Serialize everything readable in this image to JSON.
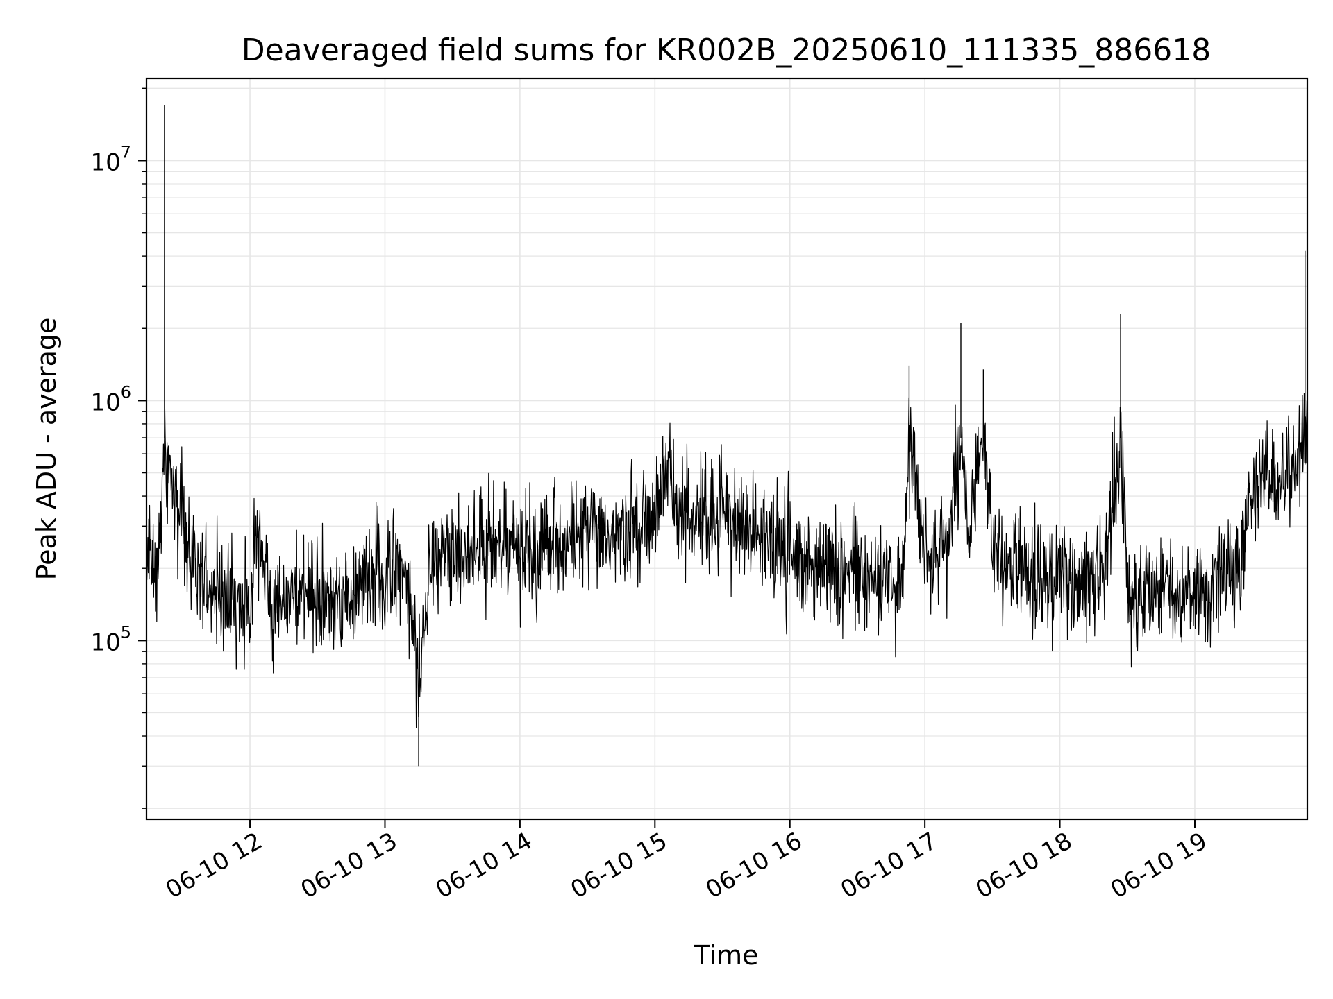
{
  "chart_data": {
    "type": "line",
    "title": "Deaveraged field sums for KR002B_20250610_111335_886618",
    "xlabel": "Time",
    "ylabel": "Peak ADU - average",
    "x_range": [
      "2025-06-10T11:14:00",
      "2025-06-10T19:50:00"
    ],
    "y_scale": "log",
    "ylim": [
      18000,
      22000000
    ],
    "grid": true,
    "line_color": "#000000",
    "grid_color": "#e6e6e6",
    "x_ticks": [
      {
        "value": "2025-06-10T12:00:00",
        "label": "06-10 12"
      },
      {
        "value": "2025-06-10T13:00:00",
        "label": "06-10 13"
      },
      {
        "value": "2025-06-10T14:00:00",
        "label": "06-10 14"
      },
      {
        "value": "2025-06-10T15:00:00",
        "label": "06-10 15"
      },
      {
        "value": "2025-06-10T16:00:00",
        "label": "06-10 16"
      },
      {
        "value": "2025-06-10T17:00:00",
        "label": "06-10 17"
      },
      {
        "value": "2025-06-10T18:00:00",
        "label": "06-10 18"
      },
      {
        "value": "2025-06-10T19:00:00",
        "label": "06-10 19"
      }
    ],
    "y_ticks": [
      {
        "value": 100000,
        "base": "10",
        "exp": "5"
      },
      {
        "value": 1000000,
        "base": "10",
        "exp": "6"
      },
      {
        "value": 10000000,
        "base": "10",
        "exp": "7"
      }
    ],
    "series": [
      {
        "x": [
          "2025-06-10T11:14:00",
          "2025-06-10T11:20:00",
          "2025-06-10T11:22:00",
          "2025-06-10T11:30:00",
          "2025-06-10T11:40:00",
          "2025-06-10T11:50:00",
          "2025-06-10T12:00:00",
          "2025-06-10T12:03:00",
          "2025-06-10T12:10:00",
          "2025-06-10T12:20:00",
          "2025-06-10T12:30:00",
          "2025-06-10T12:40:00",
          "2025-06-10T12:50:00",
          "2025-06-10T13:00:00",
          "2025-06-10T13:10:00",
          "2025-06-10T13:15:00",
          "2025-06-10T13:20:00",
          "2025-06-10T13:30:00",
          "2025-06-10T13:40:00",
          "2025-06-10T13:50:00",
          "2025-06-10T14:00:00",
          "2025-06-10T14:10:00",
          "2025-06-10T14:15:00",
          "2025-06-10T14:20:00",
          "2025-06-10T14:30:00",
          "2025-06-10T14:40:00",
          "2025-06-10T14:50:00",
          "2025-06-10T15:00:00",
          "2025-06-10T15:05:00",
          "2025-06-10T15:10:00",
          "2025-06-10T15:20:00",
          "2025-06-10T15:30:00",
          "2025-06-10T15:40:00",
          "2025-06-10T15:50:00",
          "2025-06-10T16:00:00",
          "2025-06-10T16:10:00",
          "2025-06-10T16:20:00",
          "2025-06-10T16:30:00",
          "2025-06-10T16:40:00",
          "2025-06-10T16:50:00",
          "2025-06-10T16:53:00",
          "2025-06-10T17:00:00",
          "2025-06-10T17:10:00",
          "2025-06-10T17:16:00",
          "2025-06-10T17:20:00",
          "2025-06-10T17:26:00",
          "2025-06-10T17:30:00",
          "2025-06-10T17:40:00",
          "2025-06-10T17:50:00",
          "2025-06-10T18:00:00",
          "2025-06-10T18:10:00",
          "2025-06-10T18:20:00",
          "2025-06-10T18:27:00",
          "2025-06-10T18:30:00",
          "2025-06-10T18:40:00",
          "2025-06-10T18:50:00",
          "2025-06-10T19:00:00",
          "2025-06-10T19:10:00",
          "2025-06-10T19:20:00",
          "2025-06-10T19:25:00",
          "2025-06-10T19:30:00",
          "2025-06-10T19:40:00",
          "2025-06-10T19:49:00"
        ],
        "y": [
          200000,
          240000,
          17000000,
          260000,
          180000,
          150000,
          130000,
          300000,
          140000,
          160000,
          150000,
          140000,
          170000,
          190000,
          210000,
          30000,
          230000,
          250000,
          240000,
          260000,
          230000,
          240000,
          250000,
          260000,
          270000,
          260000,
          280000,
          300000,
          600000,
          320000,
          330000,
          340000,
          310000,
          260000,
          230000,
          210000,
          200000,
          190000,
          180000,
          170000,
          1400000,
          230000,
          250000,
          2100000,
          260000,
          1350000,
          230000,
          210000,
          190000,
          180000,
          170000,
          190000,
          2300000,
          160000,
          150000,
          160000,
          170000,
          180000,
          200000,
          450000,
          430000,
          440000,
          4200000
        ]
      }
    ]
  }
}
